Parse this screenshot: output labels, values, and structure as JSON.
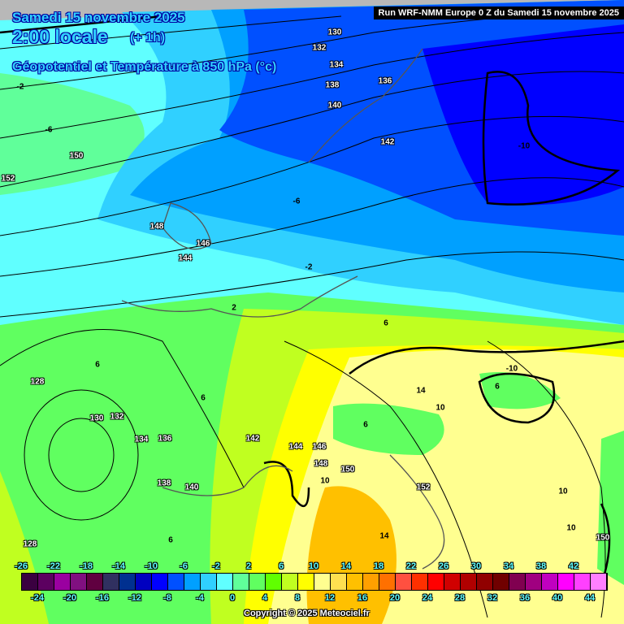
{
  "header": {
    "date": "Samedi 15 novembre 2025",
    "time": "2:00 locale",
    "offset": "(+ 1h)",
    "field": "Géopotentiel et Température à 850 hPa (°c)",
    "run": "Run WRF-NMM Europe 0 Z du Samedi 15 novembre 2025"
  },
  "colorbar": {
    "colors": [
      "#3a0040",
      "#5c0060",
      "#9a00a0",
      "#801080",
      "#600040",
      "#303060",
      "#003090",
      "#0000c0",
      "#0000ff",
      "#0050ff",
      "#00a0ff",
      "#30d0ff",
      "#60ffff",
      "#60ff9a",
      "#60ff60",
      "#60ff00",
      "#c0ff20",
      "#ffff00",
      "#ffff90",
      "#ffe050",
      "#ffc000",
      "#ffa000",
      "#ff7000",
      "#ff5040",
      "#ff3000",
      "#ff0000",
      "#d00000",
      "#b00000",
      "#900000",
      "#700000",
      "#800050",
      "#a00080",
      "#c000c0",
      "#ff00ff",
      "#ff40ff",
      "#ff80ff"
    ],
    "top_labels": [
      "-26",
      "-22",
      "-18",
      "-14",
      "-10",
      "-6",
      "-2",
      "2",
      "6",
      "10",
      "14",
      "18",
      "22",
      "26",
      "30",
      "34",
      "38",
      "42"
    ],
    "bottom_labels": [
      "-24",
      "-20",
      "-16",
      "-12",
      "-8",
      "-4",
      "0",
      "4",
      "8",
      "12",
      "16",
      "20",
      "24",
      "28",
      "32",
      "36",
      "40",
      "44"
    ]
  },
  "contour_labels": [
    "130",
    "132",
    "134",
    "136",
    "138",
    "140",
    "142",
    "150",
    "152",
    "148",
    "146",
    "144",
    "128",
    "130",
    "132",
    "134",
    "136",
    "138",
    "140",
    "142",
    "144",
    "146",
    "148",
    "150",
    "152",
    "-6",
    "-2",
    "2",
    "6",
    "6",
    "6",
    "6",
    "6",
    "-10",
    "-10",
    "10",
    "14",
    "10",
    "10",
    "6",
    "10",
    "14",
    "150",
    "128",
    "-6",
    "-2"
  ],
  "copyright": "Copyright © 2025 Meteociel.fr"
}
